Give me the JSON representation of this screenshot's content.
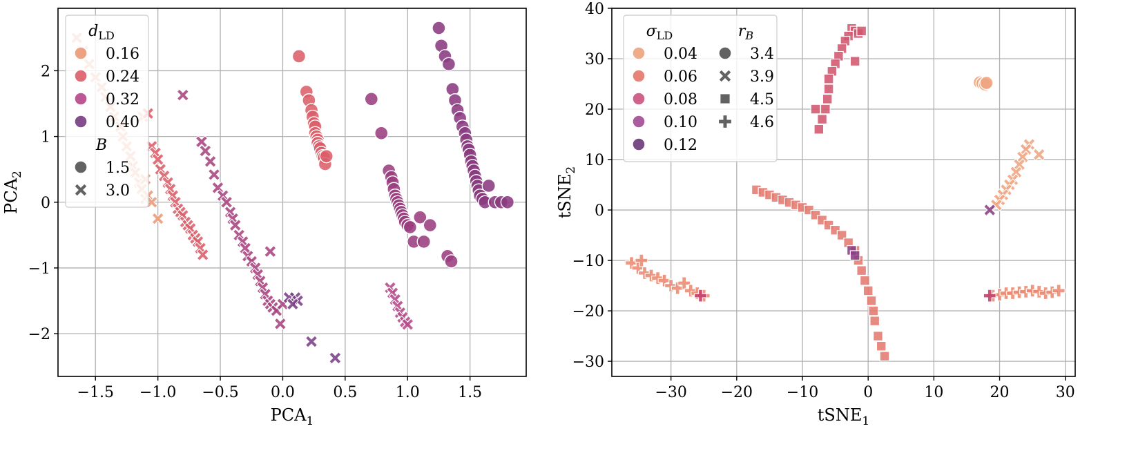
{
  "chart_data": [
    {
      "type": "scatter",
      "xlabel": "PCA₁",
      "ylabel": "PCA₂",
      "xlim": [
        -1.8,
        1.95
      ],
      "ylim": [
        -2.65,
        2.95
      ],
      "xticks": [
        -1.5,
        -1.0,
        -0.5,
        0.0,
        0.5,
        1.0,
        1.5
      ],
      "xtick_labels": [
        "−1.5",
        "−1.0",
        "−0.5",
        "0.0",
        "0.5",
        "1.0",
        "1.5"
      ],
      "yticks": [
        -2,
        -1,
        0,
        1,
        2
      ],
      "ytick_labels": [
        "−2",
        "−1",
        "0",
        "1",
        "2"
      ],
      "grid": true,
      "legend_position": "top-left",
      "legend": {
        "hue_title": "d_LD",
        "hue_entries": [
          {
            "label": "0.16",
            "color": "#eb9a7a"
          },
          {
            "label": "0.24",
            "color": "#dc5f6a"
          },
          {
            "label": "0.32",
            "color": "#b64a8a"
          },
          {
            "label": "0.40",
            "color": "#7a3f86"
          }
        ],
        "marker_title": "B",
        "marker_entries": [
          {
            "label": "1.5",
            "marker": "circle"
          },
          {
            "label": "3.0",
            "marker": "x"
          }
        ]
      },
      "series": [
        {
          "marker": "x",
          "color": "#eb9a7a",
          "x": [
            -1.65,
            -1.6,
            -1.55,
            -1.5,
            -1.45,
            -1.42,
            -1.38,
            -1.35,
            -1.3,
            -1.28,
            -1.25,
            -1.22,
            -1.2,
            -1.18,
            -1.15,
            -1.13,
            -1.1,
            -1.08,
            -1.05,
            -1.1,
            -1.12,
            -1.0
          ],
          "y": [
            2.5,
            2.3,
            2.1,
            1.9,
            1.75,
            1.6,
            1.45,
            1.3,
            1.15,
            1.0,
            0.85,
            0.7,
            0.55,
            0.45,
            0.3,
            0.2,
            0.05,
            0.1,
            0.0,
            0.35,
            1.3,
            -0.25
          ]
        },
        {
          "marker": "x",
          "color": "#dc5f6a",
          "x": [
            -1.08,
            -1.05,
            -1.02,
            -1.0,
            -0.98,
            -0.95,
            -0.92,
            -0.9,
            -0.88,
            -0.86,
            -0.84,
            -0.82,
            -0.8,
            -0.78,
            -0.76,
            -0.74,
            -0.72,
            -0.7,
            -0.68,
            -0.66,
            -0.64
          ],
          "y": [
            1.35,
            0.85,
            0.75,
            0.65,
            0.5,
            0.4,
            0.3,
            0.2,
            0.1,
            0.0,
            -0.1,
            -0.15,
            -0.2,
            -0.3,
            -0.35,
            -0.4,
            -0.5,
            -0.55,
            -0.6,
            -0.7,
            -0.8
          ]
        },
        {
          "marker": "x",
          "color": "#a8447f",
          "x": [
            -0.8,
            -0.65,
            -0.62,
            -0.58,
            -0.55,
            -0.52,
            -0.48,
            -0.45,
            -0.42,
            -0.4,
            -0.38,
            -0.35,
            -0.32,
            -0.3,
            -0.28,
            -0.25,
            -0.22,
            -0.2,
            -0.18,
            -0.16,
            -0.14,
            -0.12,
            -0.1,
            -0.08,
            -0.05,
            -0.1,
            -0.02,
            0.0
          ],
          "y": [
            1.63,
            0.92,
            0.78,
            0.62,
            0.42,
            0.22,
            0.1,
            0.0,
            -0.15,
            -0.25,
            -0.35,
            -0.5,
            -0.6,
            -0.7,
            -0.82,
            -0.9,
            -1.0,
            -1.1,
            -1.2,
            -1.3,
            -1.4,
            -1.5,
            -1.55,
            -1.6,
            -1.65,
            -0.75,
            -1.85,
            -1.55
          ]
        },
        {
          "marker": "x",
          "color": "#7a3f86",
          "x": [
            0.05,
            0.1,
            0.12,
            0.08,
            0.23,
            0.42
          ],
          "y": [
            -1.45,
            -1.45,
            -1.5,
            -1.55,
            -2.12,
            -2.37
          ]
        },
        {
          "marker": "x",
          "color": "#b64a8a",
          "x": [
            0.86,
            0.88,
            0.9,
            0.92,
            0.94,
            0.96,
            0.98,
            1.0
          ],
          "y": [
            -1.3,
            -1.38,
            -1.48,
            -1.58,
            -1.68,
            -1.75,
            -1.82,
            -1.86
          ]
        },
        {
          "marker": "circle",
          "color": "#dc5f6a",
          "x": [
            0.13,
            0.19,
            0.21,
            0.23,
            0.24,
            0.25,
            0.26,
            0.26,
            0.27,
            0.28,
            0.28,
            0.29,
            0.3,
            0.31,
            0.32,
            0.33,
            0.34,
            0.35
          ],
          "y": [
            2.22,
            1.68,
            1.55,
            1.4,
            1.3,
            1.2,
            1.15,
            1.05,
            1.0,
            0.95,
            0.9,
            0.85,
            0.82,
            0.75,
            0.7,
            0.68,
            0.58,
            0.7
          ]
        },
        {
          "marker": "circle",
          "color": "#9a3d80",
          "x": [
            0.71,
            0.79,
            0.85,
            0.87,
            0.88,
            0.89,
            0.9,
            0.91,
            0.92,
            0.93,
            0.94,
            0.95,
            0.96,
            0.97,
            0.98,
            1.0,
            1.02,
            1.05,
            1.1,
            1.13,
            1.18,
            1.32,
            1.35
          ],
          "y": [
            1.57,
            1.05,
            0.48,
            0.38,
            0.3,
            0.2,
            0.1,
            0.05,
            0.0,
            -0.05,
            -0.1,
            -0.15,
            -0.2,
            -0.25,
            -0.3,
            -0.35,
            -0.38,
            -0.6,
            -0.23,
            -0.6,
            -0.35,
            -0.82,
            -0.9
          ]
        },
        {
          "marker": "circle",
          "color": "#8a3a80",
          "x": [
            1.25,
            1.27,
            1.3,
            1.33,
            1.36,
            1.38,
            1.4,
            1.42,
            1.44,
            1.46,
            1.47,
            1.48,
            1.49,
            1.5,
            1.51,
            1.52,
            1.53,
            1.54,
            1.55,
            1.56,
            1.57,
            1.58,
            1.6,
            1.62,
            1.65,
            1.7,
            1.75,
            1.8
          ],
          "y": [
            2.65,
            2.38,
            2.22,
            2.1,
            1.72,
            1.55,
            1.4,
            1.28,
            1.15,
            1.05,
            0.95,
            0.85,
            0.8,
            0.72,
            0.62,
            0.55,
            0.48,
            0.4,
            0.32,
            0.25,
            0.18,
            0.1,
            0.05,
            0.0,
            0.25,
            0.0,
            0.0,
            0.0
          ]
        }
      ]
    },
    {
      "type": "scatter",
      "xlabel": "tSNE₁",
      "ylabel": "tSNE₂",
      "xlim": [
        -39,
        31.5
      ],
      "ylim": [
        -33,
        40
      ],
      "xticks": [
        -30,
        -20,
        -10,
        0,
        10,
        20,
        30
      ],
      "xtick_labels": [
        "−30",
        "−20",
        "−10",
        "0",
        "10",
        "20",
        "30"
      ],
      "yticks": [
        -30,
        -20,
        -10,
        0,
        10,
        20,
        30,
        40
      ],
      "ytick_labels": [
        "−30",
        "−20",
        "−10",
        "0",
        "10",
        "20",
        "30",
        "40"
      ],
      "grid": true,
      "legend_position": "top-left",
      "legend": {
        "hue_title": "σ_LD",
        "hue_entries": [
          {
            "label": "0.04",
            "color": "#eea581"
          },
          {
            "label": "0.06",
            "color": "#e47a6f"
          },
          {
            "label": "0.08",
            "color": "#cc5681"
          },
          {
            "label": "0.10",
            "color": "#a44e94"
          },
          {
            "label": "0.12",
            "color": "#6e3d7c"
          }
        ],
        "marker_title": "r_B",
        "marker_entries": [
          {
            "label": "3.4",
            "marker": "circle"
          },
          {
            "label": "3.9",
            "marker": "x"
          },
          {
            "label": "4.5",
            "marker": "square"
          },
          {
            "label": "4.6",
            "marker": "plus"
          }
        ]
      },
      "series": [
        {
          "marker": "circle",
          "color": "#eea581",
          "x": [
            17.0,
            17.4,
            17.8,
            18.0
          ],
          "y": [
            25.3,
            25.1,
            24.9,
            25.2
          ]
        },
        {
          "marker": "square",
          "color": "#d2566e",
          "x": [
            -2.5,
            -2.0,
            -1.5,
            -3.0,
            -3.5,
            -4.0,
            -4.5,
            -5.0,
            -5.5,
            -6.0,
            -6.0,
            -6.2,
            -6.5,
            -7.0,
            -7.5,
            -8.0,
            -1.0,
            -2.0
          ],
          "y": [
            36.0,
            35.5,
            35.0,
            34.5,
            33.5,
            32.0,
            30.5,
            29.0,
            27.5,
            26.0,
            24.0,
            22.0,
            20.0,
            18.0,
            16.0,
            20.0,
            35.5,
            29.5
          ]
        },
        {
          "marker": "square",
          "color": "#e47a6f",
          "x": [
            -17.0,
            -16.0,
            -15.0,
            -14.0,
            -13.0,
            -12.0,
            -11.0,
            -10.0,
            -9.0,
            -8.0,
            -7.0,
            -6.0,
            -5.0,
            -4.0,
            -3.0,
            -2.0,
            -1.5,
            -1.0,
            -0.5,
            0.0,
            0.5,
            0.8,
            1.0,
            1.5,
            2.0,
            2.5
          ],
          "y": [
            4.0,
            3.5,
            3.0,
            2.5,
            2.0,
            1.5,
            1.0,
            0.5,
            0.0,
            -1.0,
            -2.0,
            -3.0,
            -4.0,
            -5.0,
            -6.5,
            -8.0,
            -10.0,
            -12.0,
            -14.0,
            -16.0,
            -18.0,
            -20.0,
            -22.0,
            -25.0,
            -27.0,
            -29.0
          ]
        },
        {
          "marker": "square",
          "color": "#8a3f84",
          "x": [
            -2.5,
            -2.0
          ],
          "y": [
            -8.0,
            -9.0
          ]
        },
        {
          "marker": "plus",
          "color": "#e98a72",
          "x": [
            -36.0,
            -35.0,
            -34.5,
            -34.0,
            -33.0,
            -32.0,
            -31.0,
            -30.0,
            -29.0,
            -28.0,
            -27.0,
            -26.0,
            -25.0
          ],
          "y": [
            -10.5,
            -11.5,
            -10.0,
            -12.5,
            -13.0,
            -13.5,
            -14.0,
            -15.0,
            -15.5,
            -14.5,
            -16.0,
            -16.5,
            -17.0
          ]
        },
        {
          "marker": "plus",
          "color": "#c43c6a",
          "x": [
            -25.5
          ],
          "y": [
            -17.0
          ]
        },
        {
          "marker": "plus",
          "color": "#e98a72",
          "x": [
            19.0,
            20.0,
            21.0,
            22.0,
            23.0,
            24.0,
            25.0,
            26.0,
            27.0,
            28.0,
            29.0
          ],
          "y": [
            -17.0,
            -16.8,
            -16.5,
            -16.5,
            -16.3,
            -16.2,
            -16.0,
            -16.2,
            -16.5,
            -16.3,
            -16.0
          ]
        },
        {
          "marker": "plus",
          "color": "#c43c6a",
          "x": [
            18.5
          ],
          "y": [
            -17.0
          ]
        },
        {
          "marker": "x",
          "color": "#eea581",
          "x": [
            24.5,
            24.0,
            23.5,
            23.0,
            22.5,
            22.0,
            21.5,
            21.0,
            20.5,
            20.0,
            19.5,
            26.0
          ],
          "y": [
            13.0,
            12.0,
            10.5,
            9.0,
            7.5,
            6.0,
            5.0,
            4.0,
            3.0,
            2.0,
            1.0,
            11.0
          ]
        },
        {
          "marker": "x",
          "color": "#8a3f84",
          "x": [
            18.5
          ],
          "y": [
            0.0
          ]
        }
      ]
    }
  ]
}
